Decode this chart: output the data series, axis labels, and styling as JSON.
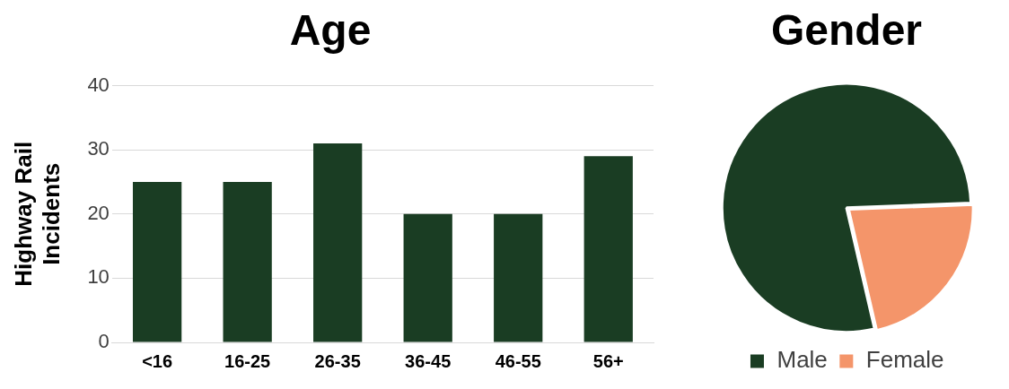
{
  "chart_data": [
    {
      "type": "bar",
      "title": "Age",
      "ylabel": "Highway Rail Incidents",
      "categories": [
        "<16",
        "16-25",
        "26-35",
        "36-45",
        "46-55",
        "56+"
      ],
      "values": [
        25,
        25,
        31,
        20,
        20,
        29
      ],
      "color": "#1a3d23",
      "ylim": [
        0,
        40
      ],
      "yticks": [
        0,
        10,
        20,
        30,
        40
      ],
      "grid": "y"
    },
    {
      "type": "pie",
      "title": "Gender",
      "categories": [
        "Male",
        "Female"
      ],
      "values": [
        78,
        22
      ],
      "colors": [
        "#1a3d23",
        "#f4956a"
      ],
      "legend": "bottom"
    }
  ]
}
